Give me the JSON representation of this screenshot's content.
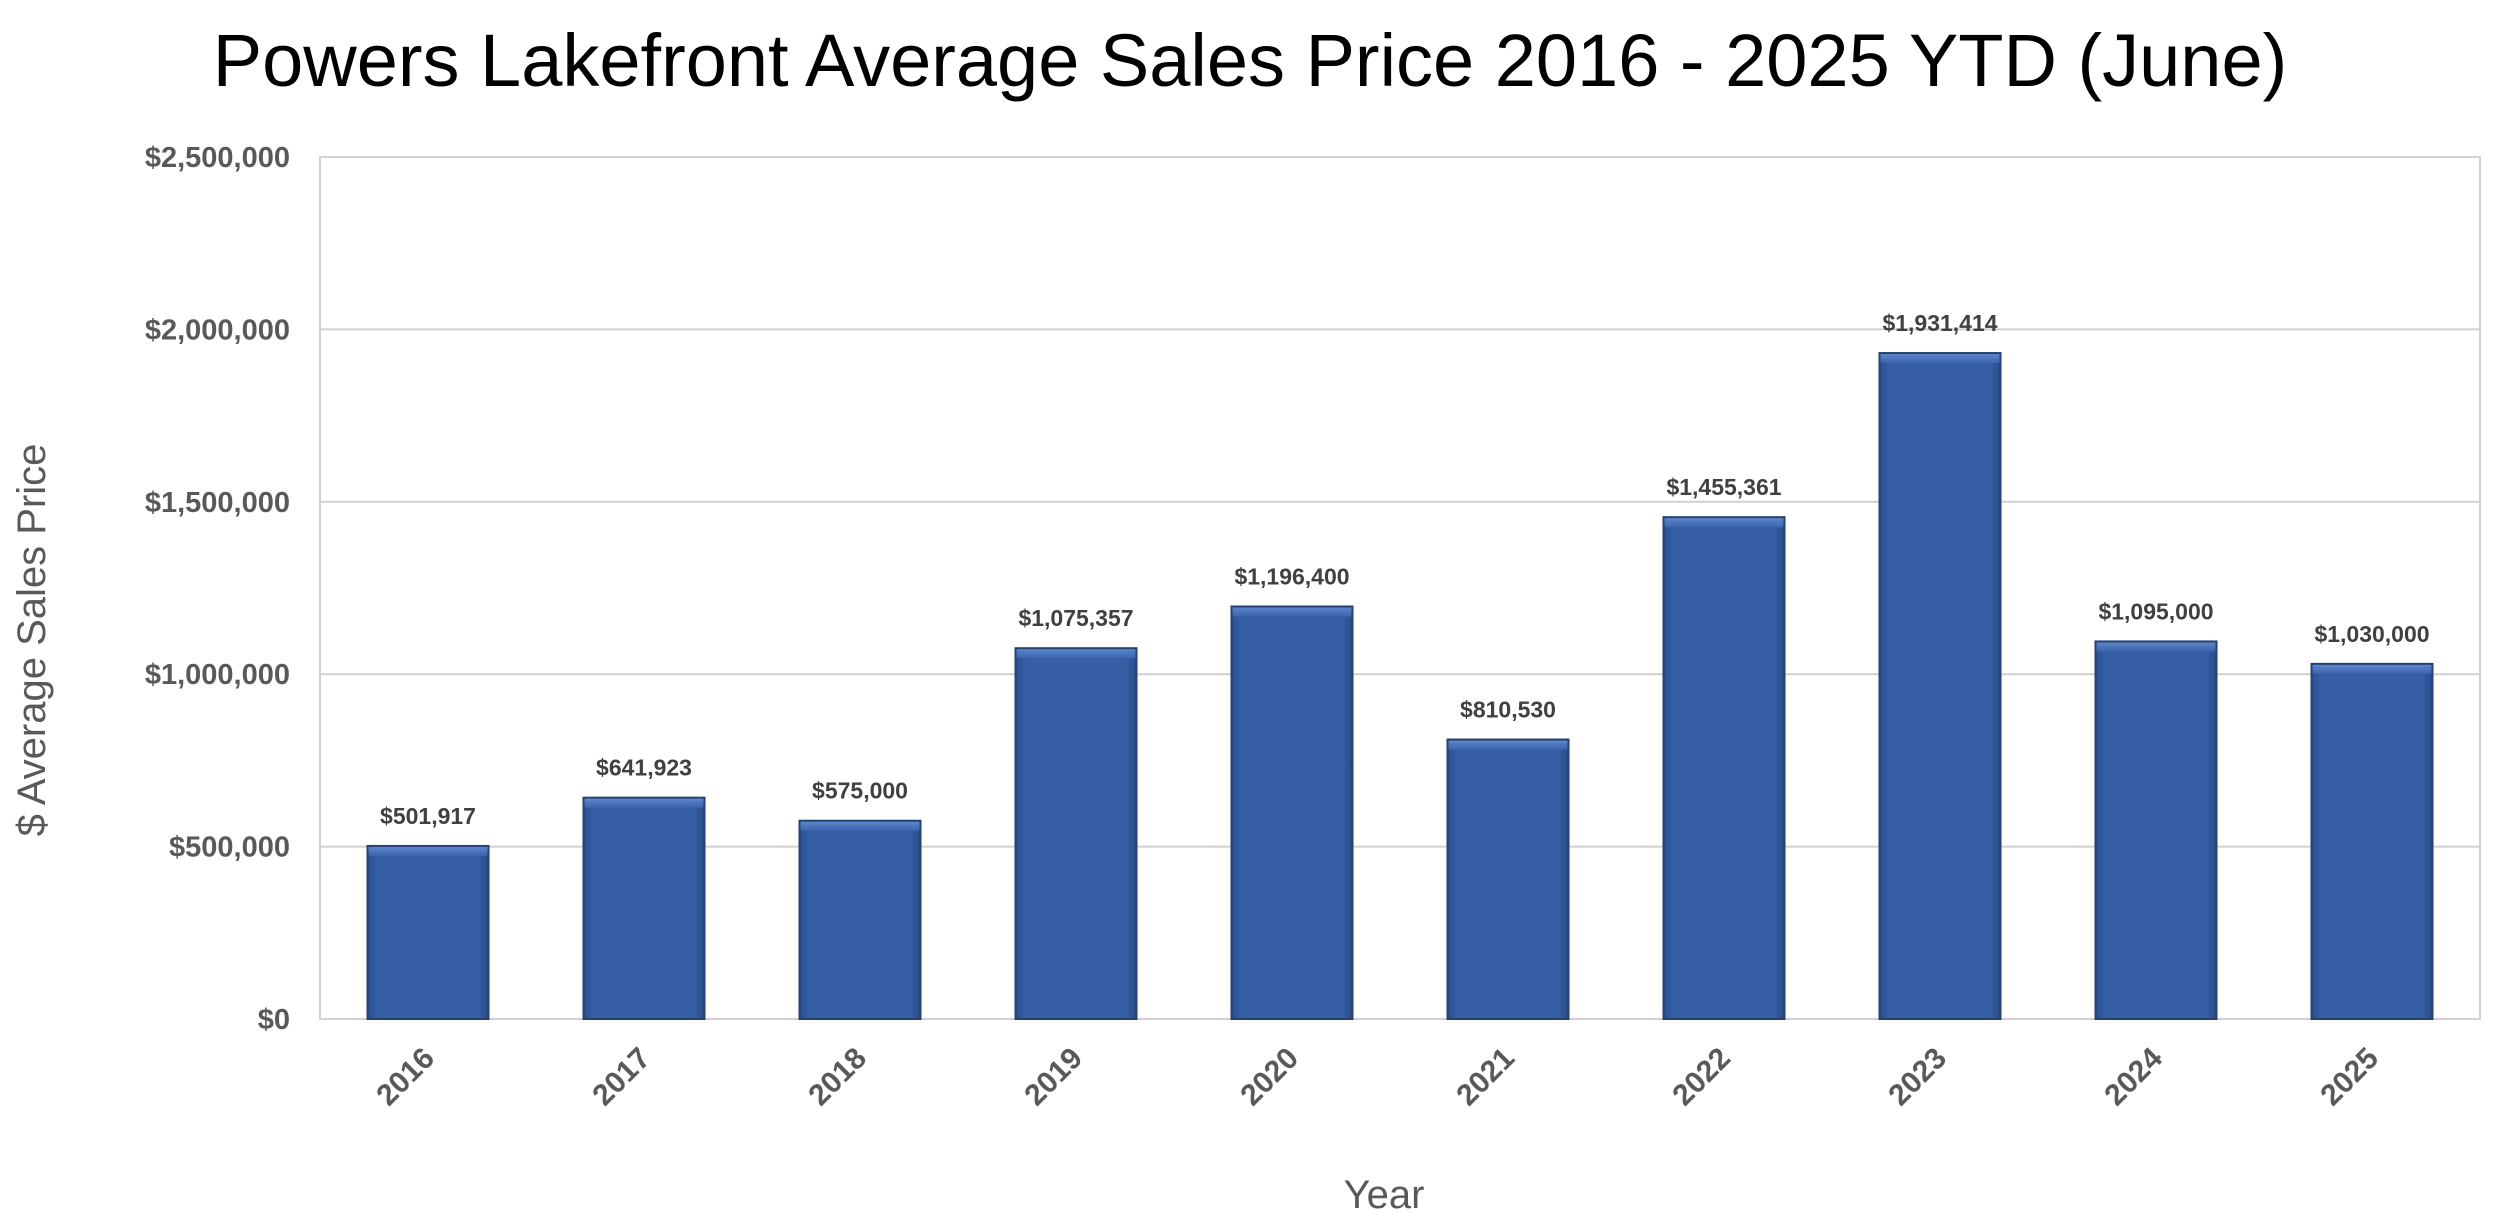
{
  "chart_data": {
    "type": "bar",
    "title": "Powers Lakefront Average Sales Price 2016 - 2025 YTD (June)",
    "xlabel": "Year",
    "ylabel": "$ Average Sales Price",
    "categories": [
      "2016",
      "2017",
      "2018",
      "2019",
      "2020",
      "2021",
      "2022",
      "2023",
      "2024",
      "2025"
    ],
    "values": [
      501917,
      641923,
      575000,
      1075357,
      1196400,
      810530,
      1455361,
      1931414,
      1095000,
      1030000
    ],
    "data_labels": [
      "$501,917",
      "$641,923",
      "$575,000",
      "$1,075,357",
      "$1,196,400",
      "$810,530",
      "$1,455,361",
      "$1,931,414",
      "$1,095,000",
      "$1,030,000"
    ],
    "ylim": [
      0,
      2500000
    ],
    "yticks": [
      0,
      500000,
      1000000,
      1500000,
      2000000,
      2500000
    ],
    "ytick_labels": [
      "$0",
      "$500,000",
      "$1,000,000",
      "$1,500,000",
      "$2,000,000",
      "$2,500,000"
    ],
    "grid": true,
    "legend": "none",
    "bar_color": "#365FA6"
  }
}
